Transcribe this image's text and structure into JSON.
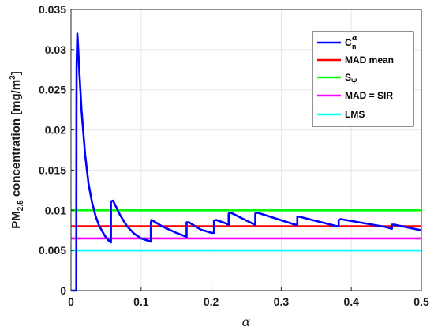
{
  "chart_data": {
    "type": "line",
    "xlabel": "α",
    "ylabel": {
      "prefix": "PM",
      "subscript": "2.5",
      "middle": " concentration [mg/m",
      "superscript": "3",
      "suffix": "]"
    },
    "xlim": [
      0,
      0.5
    ],
    "ylim": [
      0,
      0.035
    ],
    "x_ticks": [
      "0",
      "0.1",
      "0.2",
      "0.3",
      "0.4",
      "0.5"
    ],
    "y_ticks": [
      "0",
      "0.005",
      "0.01",
      "0.015",
      "0.02",
      "0.025",
      "0.03",
      "0.035"
    ],
    "grid": true,
    "legend_position": "top-right",
    "series": [
      {
        "key": "cn",
        "legend": {
          "main": "C",
          "sub": "n",
          "sup": "α"
        },
        "color": "#0000ff",
        "x": [
          0,
          0.005,
          0.0075,
          0.0078,
          0.008,
          0.009,
          0.01,
          0.012,
          0.015,
          0.02,
          0.025,
          0.03,
          0.035,
          0.04,
          0.045,
          0.05,
          0.054,
          0.057,
          0.057,
          0.06,
          0.065,
          0.07,
          0.08,
          0.09,
          0.1,
          0.11,
          0.114,
          0.114,
          0.115,
          0.13,
          0.15,
          0.165,
          0.165,
          0.168,
          0.185,
          0.2,
          0.204,
          0.204,
          0.207,
          0.22,
          0.225,
          0.225,
          0.228,
          0.26,
          0.263,
          0.263,
          0.266,
          0.32,
          0.323,
          0.323,
          0.326,
          0.38,
          0.382,
          0.382,
          0.385,
          0.45,
          0.458,
          0.458,
          0.462,
          0.5
        ],
        "values": [
          0,
          0,
          0,
          0.022,
          0.028,
          0.032,
          0.0305,
          0.027,
          0.0225,
          0.017,
          0.0133,
          0.011,
          0.0093,
          0.0081,
          0.0073,
          0.0066,
          0.0062,
          0.006,
          0.0111,
          0.0112,
          0.0103,
          0.0094,
          0.008,
          0.0071,
          0.0065,
          0.0062,
          0.0061,
          0.0085,
          0.0088,
          0.008,
          0.0072,
          0.0067,
          0.0085,
          0.0085,
          0.0076,
          0.0072,
          0.0072,
          0.0087,
          0.0088,
          0.0084,
          0.0082,
          0.0096,
          0.0097,
          0.0083,
          0.0082,
          0.0096,
          0.0097,
          0.0082,
          0.0082,
          0.0092,
          0.0092,
          0.008,
          0.008,
          0.0088,
          0.0089,
          0.0079,
          0.0077,
          0.0082,
          0.0082,
          0.0075
        ]
      },
      {
        "key": "mad-mean",
        "legend": {
          "main": "MAD mean"
        },
        "color": "#ff0000",
        "x": [
          0,
          0.5
        ],
        "values": [
          0.008,
          0.008
        ]
      },
      {
        "key": "s-psi",
        "legend": {
          "main": "S",
          "sub": "Ψ"
        },
        "color": "#00ff00",
        "x": [
          0,
          0.5
        ],
        "values": [
          0.01,
          0.01
        ]
      },
      {
        "key": "mad-sir",
        "legend": {
          "main": "MAD = SIR"
        },
        "color": "#ff00ff",
        "x": [
          0,
          0.5
        ],
        "values": [
          0.0065,
          0.0065
        ]
      },
      {
        "key": "lms",
        "legend": {
          "main": "LMS"
        },
        "color": "#00ffff",
        "x": [
          0,
          0.5
        ],
        "values": [
          0.005,
          0.005
        ]
      }
    ]
  }
}
